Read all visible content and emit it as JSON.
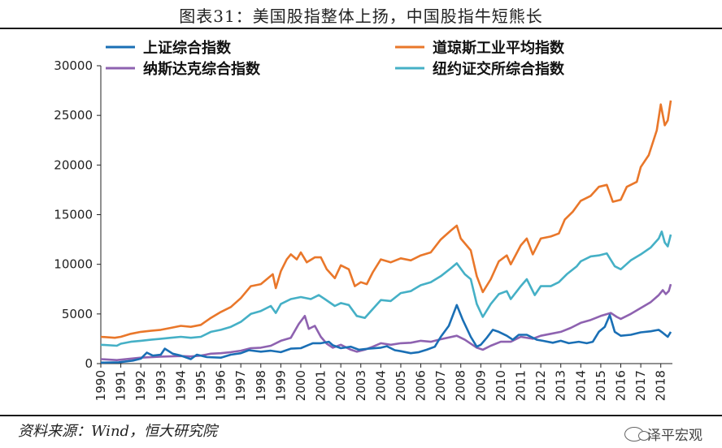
{
  "title": "图表31：美国股指整体上扬，中国股指牛短熊长",
  "source": "资料来源：Wind，恒大研究院",
  "brand": "泽平宏观",
  "chart_data": {
    "type": "line",
    "title": "图表31：美国股指整体上扬，中国股指牛短熊长",
    "xlabel": "",
    "ylabel": "",
    "ylim": [
      0,
      30000
    ],
    "yticks": [
      0,
      5000,
      10000,
      15000,
      20000,
      25000,
      30000
    ],
    "xticks": [
      "1990",
      "1991",
      "1992",
      "1993",
      "1994",
      "1995",
      "1996",
      "1997",
      "1998",
      "1999",
      "2000",
      "2001",
      "2002",
      "2003",
      "2004",
      "2005",
      "2006",
      "2007",
      "2008",
      "2009",
      "2010",
      "2011",
      "2012",
      "2013",
      "2014",
      "2015",
      "2016",
      "2017",
      "2018"
    ],
    "xlim": [
      1990,
      2018.5
    ],
    "grid": false,
    "legend_position": "top",
    "series": [
      {
        "name": "上证综合指数",
        "color": "#1a6fb5",
        "points": [
          [
            1990,
            100
          ],
          [
            1990.9,
            130
          ],
          [
            1991.6,
            300
          ],
          [
            1992.0,
            500
          ],
          [
            1992.3,
            1100
          ],
          [
            1992.6,
            800
          ],
          [
            1993.0,
            900
          ],
          [
            1993.2,
            1500
          ],
          [
            1993.6,
            1000
          ],
          [
            1994.0,
            800
          ],
          [
            1994.5,
            450
          ],
          [
            1994.8,
            900
          ],
          [
            1995.3,
            650
          ],
          [
            1996.0,
            600
          ],
          [
            1996.5,
            900
          ],
          [
            1997.0,
            1050
          ],
          [
            1997.4,
            1350
          ],
          [
            1998.0,
            1200
          ],
          [
            1998.5,
            1300
          ],
          [
            1999.0,
            1150
          ],
          [
            1999.5,
            1500
          ],
          [
            2000.0,
            1550
          ],
          [
            2000.6,
            2050
          ],
          [
            2001.0,
            2050
          ],
          [
            2001.4,
            2200
          ],
          [
            2001.6,
            1850
          ],
          [
            2002.0,
            1550
          ],
          [
            2002.5,
            1700
          ],
          [
            2002.9,
            1400
          ],
          [
            2003.4,
            1500
          ],
          [
            2004.0,
            1600
          ],
          [
            2004.3,
            1750
          ],
          [
            2004.7,
            1350
          ],
          [
            2005.0,
            1250
          ],
          [
            2005.5,
            1050
          ],
          [
            2005.9,
            1150
          ],
          [
            2006.3,
            1400
          ],
          [
            2006.7,
            1700
          ],
          [
            2007.0,
            2700
          ],
          [
            2007.4,
            3800
          ],
          [
            2007.8,
            5900
          ],
          [
            2008.1,
            4400
          ],
          [
            2008.5,
            2700
          ],
          [
            2008.8,
            1700
          ],
          [
            2009.0,
            1900
          ],
          [
            2009.3,
            2600
          ],
          [
            2009.6,
            3400
          ],
          [
            2009.9,
            3200
          ],
          [
            2010.3,
            2800
          ],
          [
            2010.6,
            2400
          ],
          [
            2010.9,
            2900
          ],
          [
            2011.3,
            2900
          ],
          [
            2011.8,
            2400
          ],
          [
            2012.1,
            2300
          ],
          [
            2012.6,
            2100
          ],
          [
            2013.0,
            2300
          ],
          [
            2013.4,
            2050
          ],
          [
            2013.9,
            2200
          ],
          [
            2014.3,
            2050
          ],
          [
            2014.6,
            2200
          ],
          [
            2014.9,
            3200
          ],
          [
            2015.2,
            3700
          ],
          [
            2015.45,
            4900
          ],
          [
            2015.7,
            3200
          ],
          [
            2016.0,
            2800
          ],
          [
            2016.5,
            2900
          ],
          [
            2017.0,
            3150
          ],
          [
            2017.5,
            3250
          ],
          [
            2017.9,
            3400
          ],
          [
            2018.1,
            3100
          ],
          [
            2018.35,
            2700
          ],
          [
            2018.5,
            3200
          ]
        ]
      },
      {
        "name": "道琼斯工业平均指数",
        "color": "#e9772a",
        "points": [
          [
            1990,
            2700
          ],
          [
            1990.7,
            2600
          ],
          [
            1991.0,
            2700
          ],
          [
            1991.5,
            3000
          ],
          [
            1992.0,
            3200
          ],
          [
            1992.5,
            3300
          ],
          [
            1993.0,
            3400
          ],
          [
            1993.5,
            3600
          ],
          [
            1994.0,
            3800
          ],
          [
            1994.5,
            3700
          ],
          [
            1995.0,
            3900
          ],
          [
            1995.5,
            4600
          ],
          [
            1996.0,
            5200
          ],
          [
            1996.5,
            5700
          ],
          [
            1997.0,
            6600
          ],
          [
            1997.5,
            7800
          ],
          [
            1998.0,
            8000
          ],
          [
            1998.6,
            9000
          ],
          [
            1998.75,
            7600
          ],
          [
            1999.0,
            9300
          ],
          [
            1999.3,
            10500
          ],
          [
            1999.5,
            11000
          ],
          [
            1999.8,
            10500
          ],
          [
            2000.0,
            11200
          ],
          [
            2000.3,
            10200
          ],
          [
            2000.7,
            10700
          ],
          [
            2001.0,
            10700
          ],
          [
            2001.3,
            9500
          ],
          [
            2001.7,
            8600
          ],
          [
            2002.0,
            9900
          ],
          [
            2002.4,
            9500
          ],
          [
            2002.7,
            7800
          ],
          [
            2003.0,
            8200
          ],
          [
            2003.3,
            8000
          ],
          [
            2003.6,
            9200
          ],
          [
            2004.0,
            10500
          ],
          [
            2004.5,
            10200
          ],
          [
            2005.0,
            10600
          ],
          [
            2005.5,
            10400
          ],
          [
            2006.0,
            10900
          ],
          [
            2006.5,
            11200
          ],
          [
            2007.0,
            12500
          ],
          [
            2007.5,
            13400
          ],
          [
            2007.8,
            13900
          ],
          [
            2008.0,
            12600
          ],
          [
            2008.5,
            11400
          ],
          [
            2008.8,
            8800
          ],
          [
            2009.1,
            7200
          ],
          [
            2009.5,
            8500
          ],
          [
            2009.9,
            10300
          ],
          [
            2010.3,
            10900
          ],
          [
            2010.5,
            10000
          ],
          [
            2011.0,
            11900
          ],
          [
            2011.3,
            12600
          ],
          [
            2011.6,
            11000
          ],
          [
            2012.0,
            12600
          ],
          [
            2012.5,
            12800
          ],
          [
            2012.9,
            13100
          ],
          [
            2013.2,
            14500
          ],
          [
            2013.6,
            15300
          ],
          [
            2014.0,
            16400
          ],
          [
            2014.5,
            16900
          ],
          [
            2014.9,
            17800
          ],
          [
            2015.3,
            18000
          ],
          [
            2015.6,
            16300
          ],
          [
            2016.0,
            16500
          ],
          [
            2016.3,
            17800
          ],
          [
            2016.8,
            18300
          ],
          [
            2017.0,
            19800
          ],
          [
            2017.4,
            21000
          ],
          [
            2017.8,
            23500
          ],
          [
            2018.0,
            26100
          ],
          [
            2018.2,
            24000
          ],
          [
            2018.35,
            24500
          ],
          [
            2018.5,
            26500
          ]
        ]
      },
      {
        "name": "纳斯达克综合指数",
        "color": "#8e62b0",
        "points": [
          [
            1990,
            450
          ],
          [
            1990.8,
            350
          ],
          [
            1991.5,
            500
          ],
          [
            1992.0,
            600
          ],
          [
            1993.0,
            700
          ],
          [
            1994.0,
            760
          ],
          [
            1994.5,
            720
          ],
          [
            1995.0,
            800
          ],
          [
            1995.5,
            1000
          ],
          [
            1996.0,
            1050
          ],
          [
            1996.5,
            1150
          ],
          [
            1997.0,
            1300
          ],
          [
            1997.5,
            1550
          ],
          [
            1998.0,
            1600
          ],
          [
            1998.5,
            1800
          ],
          [
            1999.0,
            2300
          ],
          [
            1999.5,
            2600
          ],
          [
            1999.9,
            4000
          ],
          [
            2000.2,
            4800
          ],
          [
            2000.4,
            3500
          ],
          [
            2000.7,
            3800
          ],
          [
            2001.0,
            2700
          ],
          [
            2001.3,
            2000
          ],
          [
            2001.6,
            1600
          ],
          [
            2002.0,
            1900
          ],
          [
            2002.5,
            1400
          ],
          [
            2002.8,
            1200
          ],
          [
            2003.2,
            1400
          ],
          [
            2003.6,
            1700
          ],
          [
            2004.0,
            2050
          ],
          [
            2004.5,
            1900
          ],
          [
            2005.0,
            2050
          ],
          [
            2005.5,
            2100
          ],
          [
            2006.0,
            2300
          ],
          [
            2006.5,
            2200
          ],
          [
            2007.0,
            2450
          ],
          [
            2007.8,
            2800
          ],
          [
            2008.2,
            2400
          ],
          [
            2008.8,
            1600
          ],
          [
            2009.1,
            1400
          ],
          [
            2009.5,
            1800
          ],
          [
            2010.0,
            2200
          ],
          [
            2010.5,
            2200
          ],
          [
            2011.0,
            2700
          ],
          [
            2011.6,
            2500
          ],
          [
            2012.0,
            2800
          ],
          [
            2012.5,
            3000
          ],
          [
            2013.0,
            3200
          ],
          [
            2013.5,
            3600
          ],
          [
            2014.0,
            4100
          ],
          [
            2014.5,
            4400
          ],
          [
            2015.0,
            4800
          ],
          [
            2015.5,
            5100
          ],
          [
            2015.8,
            4700
          ],
          [
            2016.0,
            4500
          ],
          [
            2016.5,
            5000
          ],
          [
            2017.0,
            5600
          ],
          [
            2017.5,
            6200
          ],
          [
            2017.9,
            6900
          ],
          [
            2018.1,
            7400
          ],
          [
            2018.25,
            7000
          ],
          [
            2018.4,
            7300
          ],
          [
            2018.5,
            8000
          ]
        ]
      },
      {
        "name": "纽约证交所综合指数",
        "color": "#45b0c6",
        "points": [
          [
            1990,
            1900
          ],
          [
            1990.8,
            1800
          ],
          [
            1991.0,
            2000
          ],
          [
            1991.5,
            2200
          ],
          [
            1992.0,
            2300
          ],
          [
            1992.5,
            2400
          ],
          [
            1993.0,
            2500
          ],
          [
            1993.5,
            2600
          ],
          [
            1994.0,
            2700
          ],
          [
            1994.5,
            2600
          ],
          [
            1995.0,
            2700
          ],
          [
            1995.5,
            3200
          ],
          [
            1996.0,
            3400
          ],
          [
            1996.5,
            3700
          ],
          [
            1997.0,
            4200
          ],
          [
            1997.5,
            5000
          ],
          [
            1998.0,
            5300
          ],
          [
            1998.5,
            5800
          ],
          [
            1998.75,
            5100
          ],
          [
            1999.0,
            6000
          ],
          [
            1999.5,
            6500
          ],
          [
            2000.0,
            6700
          ],
          [
            2000.5,
            6500
          ],
          [
            2000.9,
            6900
          ],
          [
            2001.2,
            6500
          ],
          [
            2001.7,
            5800
          ],
          [
            2002.0,
            6100
          ],
          [
            2002.4,
            5900
          ],
          [
            2002.8,
            4800
          ],
          [
            2003.2,
            4600
          ],
          [
            2003.6,
            5500
          ],
          [
            2004.0,
            6400
          ],
          [
            2004.5,
            6300
          ],
          [
            2005.0,
            7100
          ],
          [
            2005.5,
            7300
          ],
          [
            2006.0,
            7900
          ],
          [
            2006.5,
            8200
          ],
          [
            2007.0,
            8800
          ],
          [
            2007.5,
            9600
          ],
          [
            2007.8,
            10100
          ],
          [
            2008.2,
            9000
          ],
          [
            2008.5,
            8500
          ],
          [
            2008.8,
            6000
          ],
          [
            2009.1,
            4700
          ],
          [
            2009.5,
            6000
          ],
          [
            2009.9,
            7000
          ],
          [
            2010.3,
            7300
          ],
          [
            2010.5,
            6500
          ],
          [
            2011.0,
            7800
          ],
          [
            2011.3,
            8500
          ],
          [
            2011.7,
            6900
          ],
          [
            2012.0,
            7800
          ],
          [
            2012.5,
            7800
          ],
          [
            2012.9,
            8200
          ],
          [
            2013.3,
            9000
          ],
          [
            2013.8,
            9800
          ],
          [
            2014.0,
            10300
          ],
          [
            2014.5,
            10800
          ],
          [
            2014.9,
            10900
          ],
          [
            2015.3,
            11100
          ],
          [
            2015.7,
            9800
          ],
          [
            2016.0,
            9500
          ],
          [
            2016.5,
            10400
          ],
          [
            2017.0,
            11000
          ],
          [
            2017.5,
            11700
          ],
          [
            2017.9,
            12600
          ],
          [
            2018.05,
            13300
          ],
          [
            2018.2,
            12200
          ],
          [
            2018.35,
            11800
          ],
          [
            2018.5,
            13000
          ]
        ]
      }
    ]
  }
}
